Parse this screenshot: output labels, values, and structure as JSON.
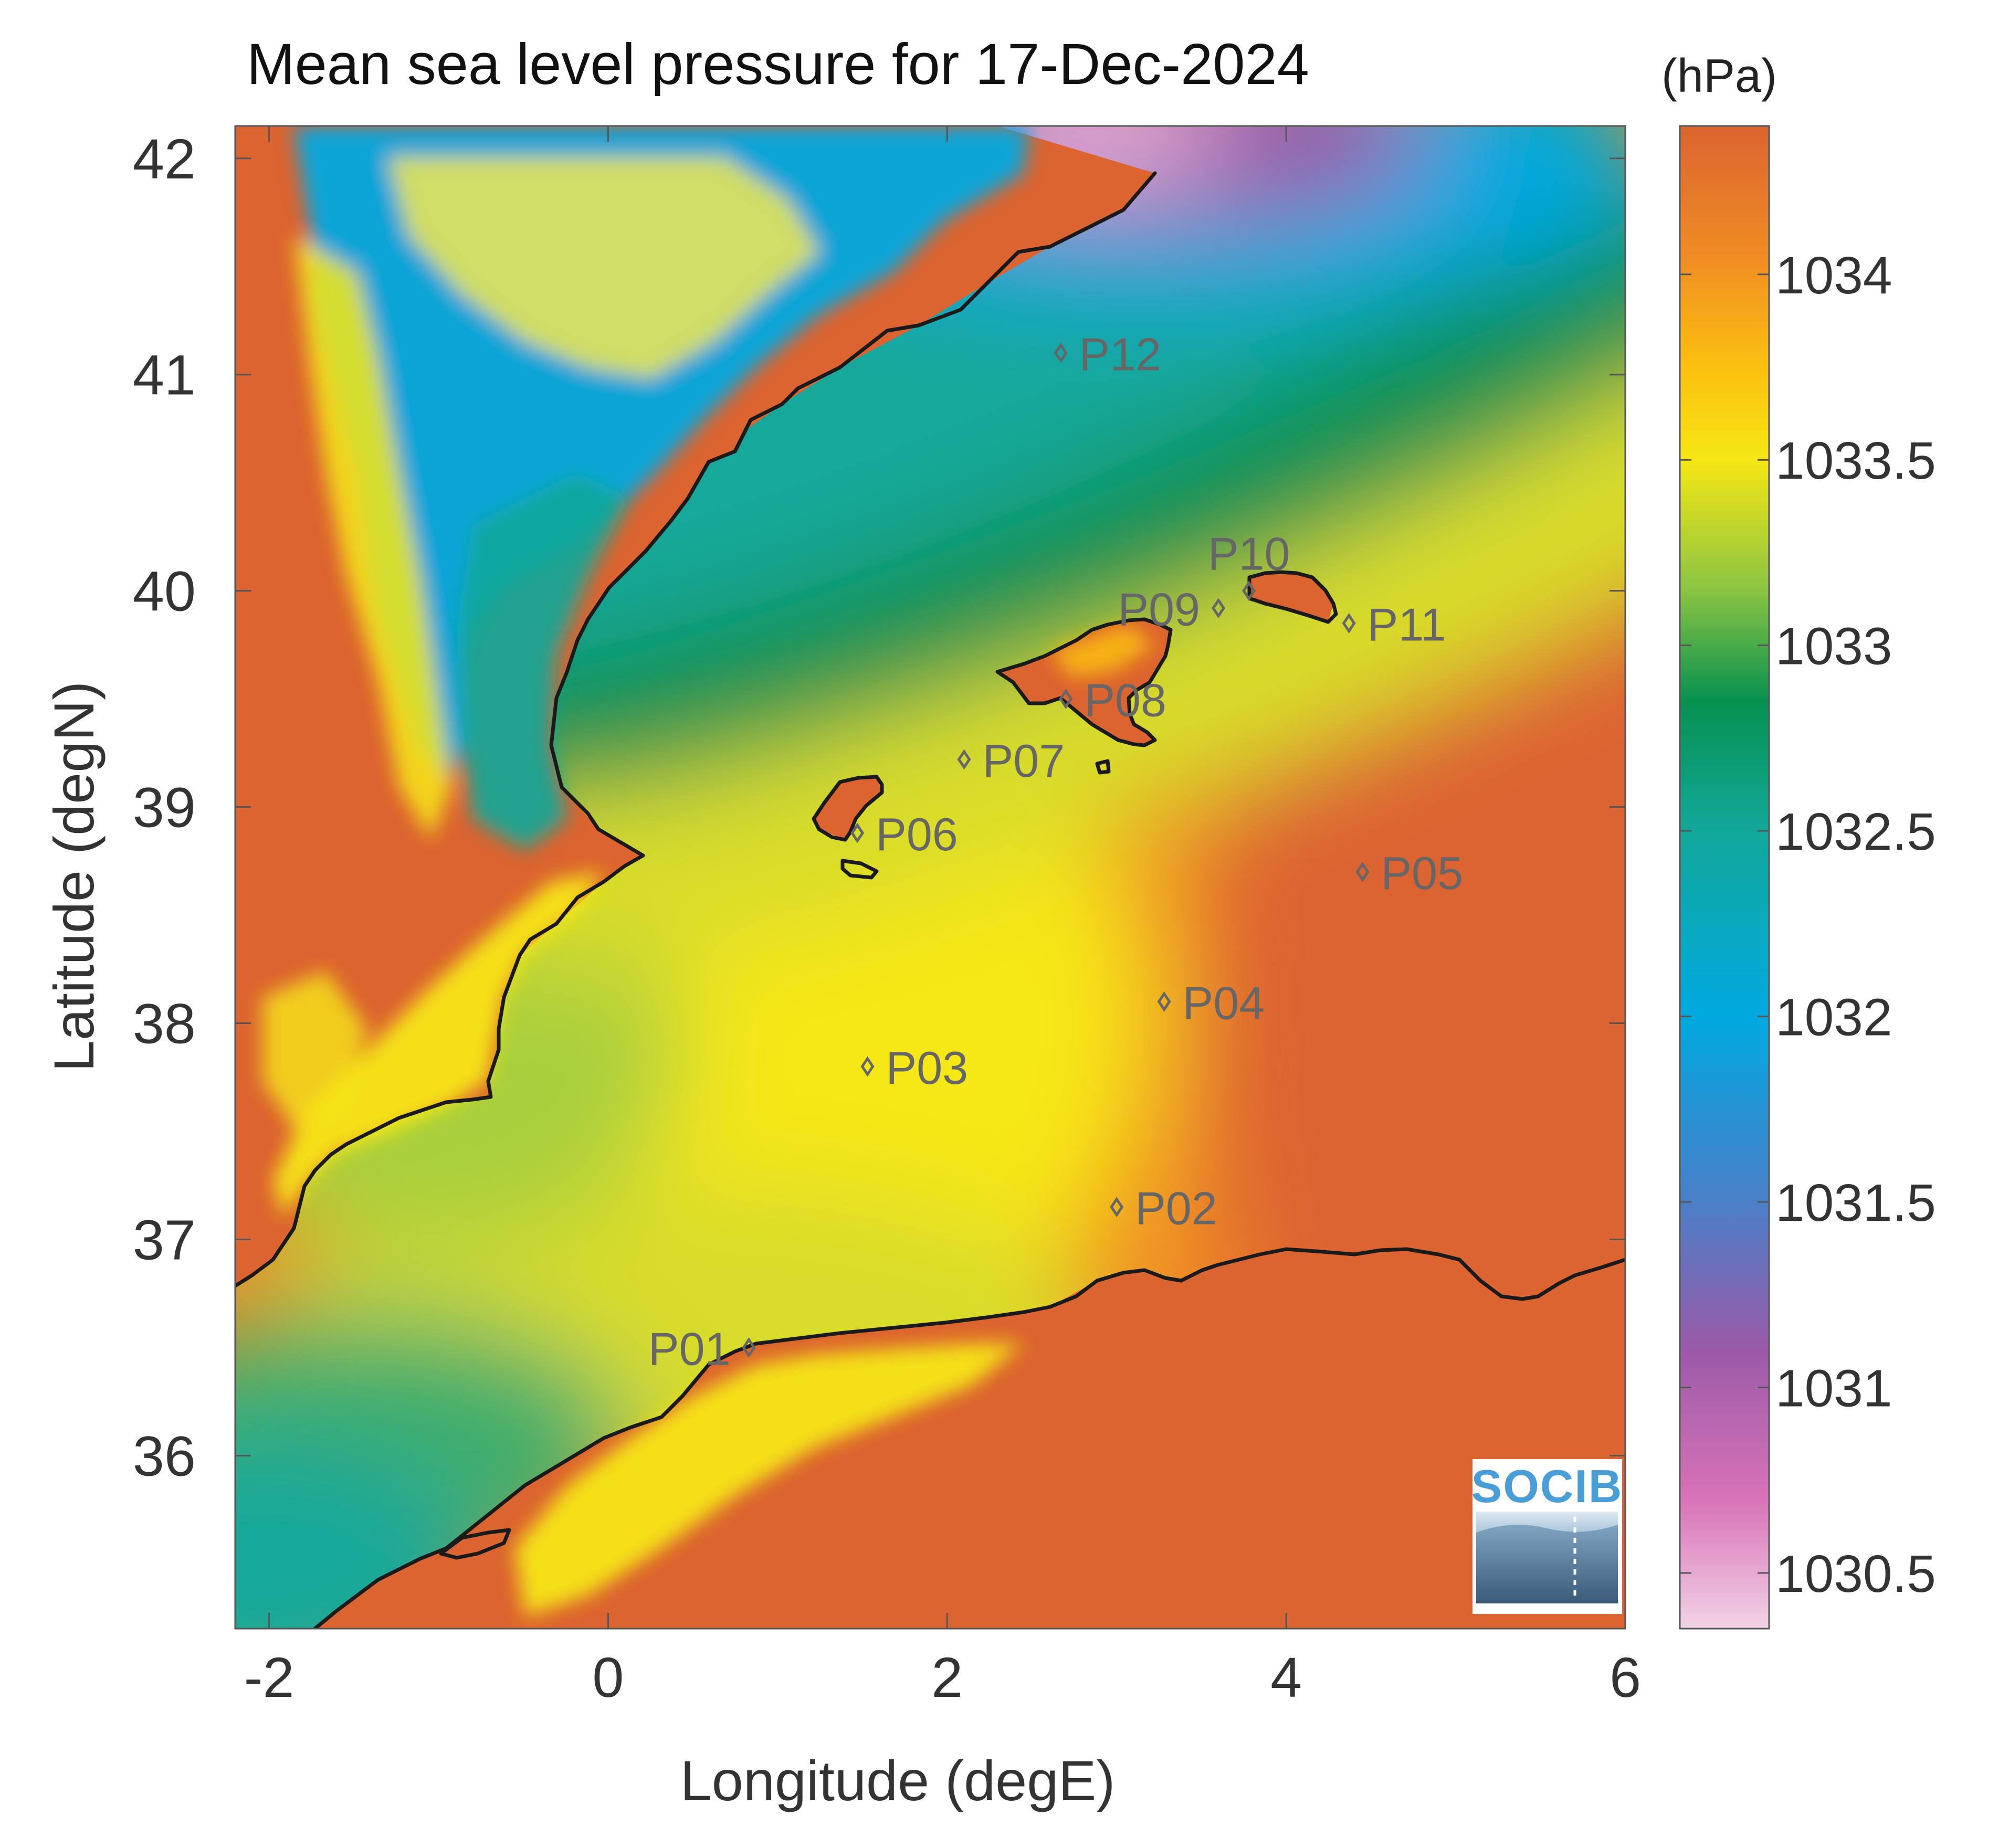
{
  "title": "Mean sea level pressure for 17-Dec-2024",
  "colorbar": {
    "unit": "(hPa)",
    "range": [
      1030.35,
      1034.4
    ],
    "ticks": [
      {
        "value": 1034,
        "label": "1034"
      },
      {
        "value": 1033.5,
        "label": "1033.5"
      },
      {
        "value": 1033,
        "label": "1033"
      },
      {
        "value": 1032.5,
        "label": "1032.5"
      },
      {
        "value": 1032,
        "label": "1032"
      },
      {
        "value": 1031.5,
        "label": "1031.5"
      },
      {
        "value": 1031,
        "label": "1031"
      },
      {
        "value": 1030.5,
        "label": "1030.5"
      }
    ],
    "colormap": [
      {
        "value": 1030.35,
        "color": "#f2d2e6"
      },
      {
        "value": 1030.7,
        "color": "#d873b8"
      },
      {
        "value": 1031.1,
        "color": "#9b5aa8"
      },
      {
        "value": 1031.5,
        "color": "#4b7fc8"
      },
      {
        "value": 1032.0,
        "color": "#00a8e0"
      },
      {
        "value": 1032.5,
        "color": "#12a89a"
      },
      {
        "value": 1032.85,
        "color": "#079150"
      },
      {
        "value": 1033.15,
        "color": "#8bc442"
      },
      {
        "value": 1033.5,
        "color": "#f6e715"
      },
      {
        "value": 1033.75,
        "color": "#fbc010"
      },
      {
        "value": 1034.05,
        "color": "#f08c24"
      },
      {
        "value": 1034.4,
        "color": "#dc6430"
      }
    ]
  },
  "map": {
    "xlabel": "Longitude (degE)",
    "ylabel": "Latitude (degN)",
    "xlim": [
      -2.2,
      6.0
    ],
    "ylim": [
      35.2,
      42.15
    ],
    "xticks": [
      {
        "value": -2,
        "label": "-2"
      },
      {
        "value": 0,
        "label": "0"
      },
      {
        "value": 2,
        "label": "2"
      },
      {
        "value": 4,
        "label": "4"
      },
      {
        "value": 6,
        "label": "6"
      }
    ],
    "yticks": [
      {
        "value": 42,
        "label": "42"
      },
      {
        "value": 41,
        "label": "41"
      },
      {
        "value": 40,
        "label": "40"
      },
      {
        "value": 39,
        "label": "39"
      },
      {
        "value": 38,
        "label": "38"
      },
      {
        "value": 37,
        "label": "37"
      },
      {
        "value": 36,
        "label": "36"
      }
    ],
    "land_color": "#dc6430"
  },
  "stations": [
    {
      "id": "P01",
      "lon": 0.83,
      "lat": 36.5,
      "label_side": "left"
    },
    {
      "id": "P02",
      "lon": 3.0,
      "lat": 37.15,
      "label_side": "right"
    },
    {
      "id": "P03",
      "lon": 1.53,
      "lat": 37.8,
      "label_side": "right"
    },
    {
      "id": "P04",
      "lon": 3.28,
      "lat": 38.1,
      "label_side": "right"
    },
    {
      "id": "P05",
      "lon": 4.45,
      "lat": 38.7,
      "label_side": "right"
    },
    {
      "id": "P06",
      "lon": 1.47,
      "lat": 38.88,
      "label_side": "right"
    },
    {
      "id": "P07",
      "lon": 2.1,
      "lat": 39.22,
      "label_side": "right"
    },
    {
      "id": "P08",
      "lon": 2.7,
      "lat": 39.5,
      "label_side": "right"
    },
    {
      "id": "P09",
      "lon": 3.6,
      "lat": 39.92,
      "label_side": "left"
    },
    {
      "id": "P10",
      "lon": 3.78,
      "lat": 40.0,
      "label_side": "above"
    },
    {
      "id": "P11",
      "lon": 4.37,
      "lat": 39.85,
      "label_side": "right"
    },
    {
      "id": "P12",
      "lon": 2.67,
      "lat": 41.1,
      "label_side": "right"
    }
  ],
  "logo": {
    "text": "SOCIB"
  }
}
